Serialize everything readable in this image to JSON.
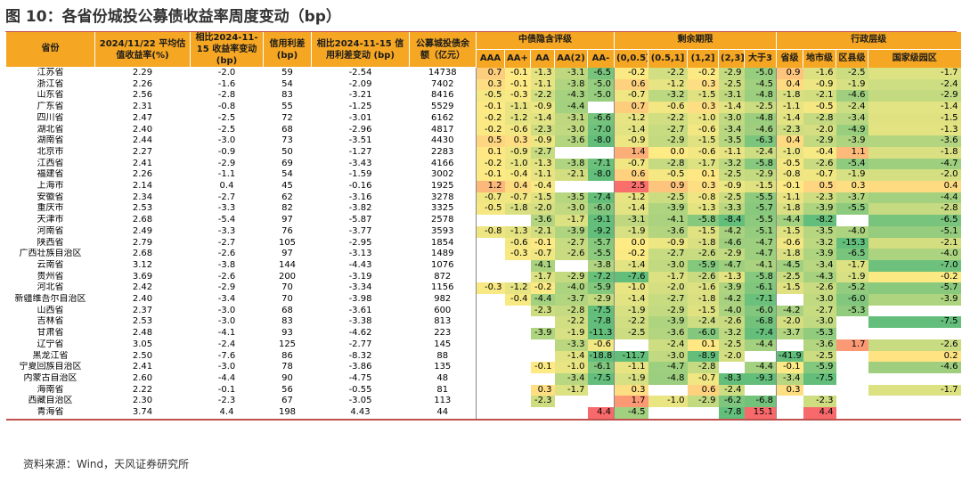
{
  "title": "图 10：各省份城投公募债收益率周度变动（bp）",
  "source": "资料来源：Wind，天风证券研究所",
  "colors": {
    "header_bg": "#f5a623",
    "rule": "#c0504d",
    "scale_red": "#f8696b",
    "scale_yellow": "#ffeb84",
    "scale_green": "#63be7b"
  },
  "headers": {
    "province": "省份",
    "yield": "2024/11/22 平均估值收益率(%)",
    "yield_change": "相比2024-11-15 收益率变动 (bp)",
    "spread": "信用利差 (bp)",
    "spread_change": "相比2024-11-15 信用利差变动 (bp)",
    "balance": "公募城投债余 额（亿元）",
    "group_rating": "中债隐含评级",
    "group_maturity": "剩余期限",
    "group_admin": "行政层级",
    "rating": [
      "AAA",
      "AA+",
      "AA",
      "AA(2)",
      "AA-"
    ],
    "maturity": [
      "(0,0.5]",
      "(0.5,1]",
      "(1,2]",
      "(2,3]",
      "大于3"
    ],
    "admin": [
      "省级",
      "地市级",
      "区县级",
      "国家级园区"
    ]
  },
  "rows": [
    {
      "p": "江苏省",
      "y": "2.29",
      "yc": "-2.0",
      "s": "59",
      "sc": "-2.54",
      "b": "14738",
      "h": [
        "0.7",
        "-0.1",
        "-1.3",
        "-3.1",
        "-6.5",
        "-0.2",
        "-2.2",
        "-0.2",
        "-2.9",
        "-5.0",
        "0.9",
        "-1.6",
        "-2.5",
        "-1.7"
      ]
    },
    {
      "p": "浙江省",
      "y": "2.26",
      "yc": "-1.6",
      "s": "54",
      "sc": "-2.09",
      "b": "7402",
      "h": [
        "0.3",
        "-0.1",
        "-1.1",
        "-3.8",
        "-5.0",
        "0.6",
        "-1.2",
        "0.3",
        "-2.5",
        "-4.5",
        "0.4",
        "-0.9",
        "-1.9",
        "-2.4"
      ]
    },
    {
      "p": "山东省",
      "y": "2.56",
      "yc": "-2.8",
      "s": "83",
      "sc": "-3.21",
      "b": "8416",
      "h": [
        "-0.5",
        "-0.3",
        "-2.2",
        "-4.3",
        "-5.0",
        "-0.7",
        "-3.2",
        "-1.5",
        "-3.1",
        "-4.8",
        "-1.8",
        "-2.1",
        "-4.6",
        "-2.9"
      ]
    },
    {
      "p": "广东省",
      "y": "2.31",
      "yc": "-0.8",
      "s": "55",
      "sc": "-1.25",
      "b": "5529",
      "h": [
        "-0.1",
        "-1.1",
        "-0.9",
        "-4.4",
        "",
        "0.7",
        "-0.6",
        "0.3",
        "-1.4",
        "-2.5",
        "-1.1",
        "-0.5",
        "-2.4",
        "-1.4"
      ]
    },
    {
      "p": "四川省",
      "y": "2.47",
      "yc": "-2.5",
      "s": "72",
      "sc": "-3.01",
      "b": "6162",
      "h": [
        "-0.2",
        "-1.2",
        "-1.4",
        "-3.1",
        "-6.6",
        "-1.2",
        "-2.2",
        "-1.0",
        "-3.0",
        "-4.8",
        "-1.4",
        "-2.8",
        "-3.4",
        "-1.5"
      ]
    },
    {
      "p": "湖北省",
      "y": "2.40",
      "yc": "-2.5",
      "s": "68",
      "sc": "-2.96",
      "b": "4817",
      "h": [
        "-0.2",
        "-0.6",
        "-2.3",
        "-3.0",
        "-7.0",
        "-1.4",
        "-2.7",
        "-0.6",
        "-3.4",
        "-4.6",
        "-2.3",
        "-2.0",
        "-4.9",
        "-1.3"
      ]
    },
    {
      "p": "湖南省",
      "y": "2.44",
      "yc": "-3.0",
      "s": "73",
      "sc": "-3.51",
      "b": "4430",
      "h": [
        "0.5",
        "0.3",
        "-0.9",
        "-3.6",
        "-8.0",
        "-0.9",
        "-2.9",
        "-1.5",
        "-3.5",
        "-6.3",
        "0.4",
        "-2.9",
        "-3.9",
        "-3.6"
      ]
    },
    {
      "p": "北京市",
      "y": "2.27",
      "yc": "-0.9",
      "s": "50",
      "sc": "-1.27",
      "b": "2283",
      "h": [
        "0.1",
        "-0.9",
        "-2.7",
        "",
        "",
        "1.4",
        "0.0",
        "-0.6",
        "-1.1",
        "-2.4",
        "-1.0",
        "-0.4",
        "1.1",
        "-1.8"
      ]
    },
    {
      "p": "江西省",
      "y": "2.41",
      "yc": "-2.9",
      "s": "69",
      "sc": "-3.43",
      "b": "4166",
      "h": [
        "-0.2",
        "-1.0",
        "-1.3",
        "-3.8",
        "-7.1",
        "-0.7",
        "-2.8",
        "-1.7",
        "-3.2",
        "-5.8",
        "-0.5",
        "-2.6",
        "-5.4",
        "-4.7"
      ]
    },
    {
      "p": "福建省",
      "y": "2.26",
      "yc": "-1.1",
      "s": "54",
      "sc": "-1.59",
      "b": "3002",
      "h": [
        "-0.1",
        "-0.4",
        "-1.1",
        "-2.1",
        "-8.0",
        "0.6",
        "-0.5",
        "0.1",
        "-2.5",
        "-2.9",
        "-0.8",
        "-0.7",
        "-1.9",
        "-2.0"
      ]
    },
    {
      "p": "上海市",
      "y": "2.14",
      "yc": "0.4",
      "s": "45",
      "sc": "-0.16",
      "b": "1925",
      "h": [
        "1.2",
        "0.4",
        "-0.4",
        "",
        "",
        "2.5",
        "0.9",
        "0.3",
        "-0.9",
        "-1.5",
        "-0.1",
        "0.5",
        "0.3",
        "0.4"
      ]
    },
    {
      "p": "安徽省",
      "y": "2.34",
      "yc": "-2.7",
      "s": "62",
      "sc": "-3.16",
      "b": "3278",
      "h": [
        "-0.7",
        "-0.7",
        "-1.5",
        "-3.5",
        "-7.4",
        "-1.2",
        "-2.5",
        "-0.8",
        "-2.5",
        "-5.5",
        "-1.1",
        "-2.3",
        "-3.7",
        "-4.4"
      ]
    },
    {
      "p": "重庆市",
      "y": "2.53",
      "yc": "-3.3",
      "s": "82",
      "sc": "-3.82",
      "b": "3325",
      "h": [
        "-0.5",
        "-1.8",
        "-2.0",
        "-3.0",
        "-6.0",
        "-1.4",
        "-3.9",
        "-1.3",
        "-3.3",
        "-5.7",
        "-1.8",
        "-3.9",
        "-5.5",
        "-2.8"
      ]
    },
    {
      "p": "天津市",
      "y": "2.68",
      "yc": "-5.4",
      "s": "97",
      "sc": "-5.87",
      "b": "2578",
      "h": [
        "",
        "",
        "-3.6",
        "-1.7",
        "-9.1",
        "-3.1",
        "-4.1",
        "-5.8",
        "-8.4",
        "-5.5",
        "-4.4",
        "-8.2",
        "",
        "-6.5"
      ]
    },
    {
      "p": "河南省",
      "y": "2.49",
      "yc": "-3.3",
      "s": "76",
      "sc": "-3.77",
      "b": "3593",
      "h": [
        "-0.8",
        "-1.3",
        "-2.1",
        "-3.9",
        "-9.2",
        "-1.9",
        "-3.6",
        "-1.5",
        "-4.2",
        "-5.1",
        "-1.5",
        "-3.5",
        "-4.0",
        "-5.1"
      ]
    },
    {
      "p": "陕西省",
      "y": "2.79",
      "yc": "-2.7",
      "s": "105",
      "sc": "-2.95",
      "b": "1854",
      "h": [
        "",
        "-0.6",
        "-0.1",
        "-2.7",
        "-5.7",
        "0.0",
        "-0.9",
        "-1.8",
        "-4.6",
        "-4.7",
        "-0.6",
        "-3.2",
        "-15.3",
        "-2.1"
      ]
    },
    {
      "p": "广西壮族自治区",
      "y": "2.68",
      "yc": "-2.6",
      "s": "97",
      "sc": "-3.13",
      "b": "1489",
      "h": [
        "",
        "-0.3",
        "-0.7",
        "-2.6",
        "-5.5",
        "-0.2",
        "-2.7",
        "-2.6",
        "-2.9",
        "-4.7",
        "-1.8",
        "-3.9",
        "-6.5",
        "-4.0"
      ]
    },
    {
      "p": "云南省",
      "y": "3.12",
      "yc": "-3.8",
      "s": "144",
      "sc": "-4.43",
      "b": "1076",
      "h": [
        "",
        "",
        "-4.1",
        "",
        "-3.8",
        "-1.4",
        "-3.0",
        "-5.9",
        "-4.7",
        "-4.1",
        "-4.5",
        "-3.4",
        "-1.7",
        "-7.0"
      ]
    },
    {
      "p": "贵州省",
      "y": "3.69",
      "yc": "-2.6",
      "s": "200",
      "sc": "-3.19",
      "b": "872",
      "h": [
        "",
        "",
        "-1.7",
        "-2.9",
        "-7.2",
        "-7.6",
        "-1.7",
        "-2.6",
        "-1.3",
        "-5.8",
        "-2.5",
        "-4.3",
        "-1.9",
        "-0.2"
      ]
    },
    {
      "p": "河北省",
      "y": "2.42",
      "yc": "-2.9",
      "s": "70",
      "sc": "-3.34",
      "b": "1156",
      "h": [
        "-0.3",
        "-1.2",
        "-0.2",
        "-4.0",
        "-5.9",
        "-1.0",
        "-2.0",
        "-1.6",
        "-3.9",
        "-6.1",
        "-1.5",
        "-2.6",
        "-5.2",
        "-5.7"
      ]
    },
    {
      "p": "新疆维吾尔自治区",
      "y": "2.40",
      "yc": "-3.4",
      "s": "70",
      "sc": "-3.98",
      "b": "982",
      "h": [
        "",
        "-0.4",
        "-4.4",
        "-3.7",
        "-2.9",
        "-1.4",
        "-2.7",
        "-1.8",
        "-4.2",
        "-7.1",
        "",
        "-3.0",
        "-6.0",
        "-3.9"
      ]
    },
    {
      "p": "山西省",
      "y": "2.37",
      "yc": "-3.0",
      "s": "68",
      "sc": "-3.61",
      "b": "600",
      "h": [
        "",
        "",
        "-2.3",
        "-2.8",
        "-7.5",
        "-1.9",
        "-2.9",
        "-1.5",
        "-4.0",
        "-6.0",
        "-4.2",
        "-2.7",
        "-5.3",
        ""
      ]
    },
    {
      "p": "吉林省",
      "y": "2.53",
      "yc": "-3.0",
      "s": "83",
      "sc": "-3.38",
      "b": "813",
      "h": [
        "",
        "",
        "",
        "-2.2",
        "-7.8",
        "-2.2",
        "-3.9",
        "-2.4",
        "-2.6",
        "-6.8",
        "-2.0",
        "-3.0",
        "",
        "-7.5"
      ]
    },
    {
      "p": "甘肃省",
      "y": "2.48",
      "yc": "-4.1",
      "s": "93",
      "sc": "-4.62",
      "b": "223",
      "h": [
        "",
        "",
        "-3.9",
        "-1.9",
        "-11.3",
        "-2.5",
        "-3.6",
        "-6.0",
        "-3.2",
        "-7.4",
        "-3.7",
        "-5.3",
        "",
        ""
      ]
    },
    {
      "p": "辽宁省",
      "y": "3.05",
      "yc": "-2.4",
      "s": "125",
      "sc": "-2.77",
      "b": "145",
      "h": [
        "",
        "",
        "",
        "-3.3",
        "-0.6",
        "",
        "-2.4",
        "0.1",
        "-2.5",
        "-4.4",
        "",
        "-3.6",
        "1.7",
        "-2.6"
      ]
    },
    {
      "p": "黑龙江省",
      "y": "2.50",
      "yc": "-7.6",
      "s": "86",
      "sc": "-8.32",
      "b": "88",
      "h": [
        "",
        "",
        "",
        "-1.4",
        "-18.8",
        "-11.7",
        "-3.0",
        "-8.9",
        "-2.0",
        "",
        "-41.9",
        "-2.5",
        "",
        "0.2"
      ]
    },
    {
      "p": "宁夏回族自治区",
      "y": "2.41",
      "yc": "-3.0",
      "s": "78",
      "sc": "-3.86",
      "b": "135",
      "h": [
        "",
        "",
        "-0.1",
        "-1.0",
        "-6.1",
        "-1.1",
        "-4.7",
        "-2.8",
        "",
        "-4.4",
        "-0.1",
        "-5.9",
        "",
        "-4.6"
      ]
    },
    {
      "p": "内蒙古自治区",
      "y": "2.60",
      "yc": "-4.4",
      "s": "90",
      "sc": "-4.75",
      "b": "48",
      "h": [
        "",
        "",
        "",
        "-3.4",
        "-7.5",
        "-1.9",
        "-4.8",
        "-0.7",
        "-8.3",
        "-9.3",
        "-3.4",
        "-7.5",
        "",
        ""
      ]
    },
    {
      "p": "海南省",
      "y": "2.22",
      "yc": "-0.1",
      "s": "56",
      "sc": "-0.55",
      "b": "81",
      "h": [
        "",
        "",
        "0.3",
        "-1.7",
        "",
        "0.3",
        "",
        "0.6",
        "-2.4",
        "",
        "0.3",
        "",
        "",
        "-1.7"
      ]
    },
    {
      "p": "西藏自治区",
      "y": "2.30",
      "yc": "-2.3",
      "s": "67",
      "sc": "-3.05",
      "b": "113",
      "h": [
        "",
        "",
        "-2.3",
        "",
        "",
        "1.7",
        "-1.0",
        "-2.9",
        "-6.2",
        "-6.8",
        "",
        "-2.3",
        "",
        ""
      ]
    },
    {
      "p": "青海省",
      "y": "3.74",
      "yc": "4.4",
      "s": "198",
      "sc": "4.43",
      "b": "44",
      "h": [
        "",
        "",
        "",
        "",
        "4.4",
        "-4.5",
        "",
        "",
        "-7.8",
        "15.1",
        "",
        "4.4",
        "",
        ""
      ]
    }
  ]
}
